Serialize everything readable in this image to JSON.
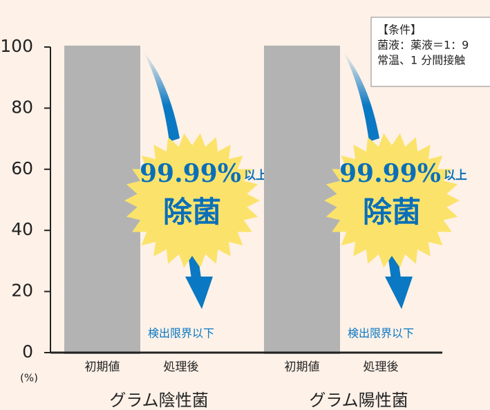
{
  "chart_data": {
    "type": "bar",
    "groups": [
      {
        "name": "グラム陰性菌",
        "values": [
          100,
          0
        ],
        "value_labels": [
          null,
          "検出限界以下"
        ]
      },
      {
        "name": "グラム陽性菌",
        "values": [
          100,
          0
        ],
        "value_labels": [
          null,
          "検出限界以下"
        ]
      }
    ],
    "categories": [
      "初期値",
      "処理後"
    ],
    "colors": [
      "#b3b3b3",
      "#0a78c2"
    ],
    "ylim": [
      0,
      100
    ],
    "yticks": [
      0,
      20,
      40,
      60,
      80,
      100
    ],
    "y_unit": "(%)",
    "badge": {
      "percent": "99.99%",
      "suffix": "以上",
      "text": "除菌"
    },
    "conditions": {
      "title": "【条件】",
      "lines": [
        "菌液：薬液＝1：9",
        "常温、1 分間接触"
      ]
    }
  }
}
